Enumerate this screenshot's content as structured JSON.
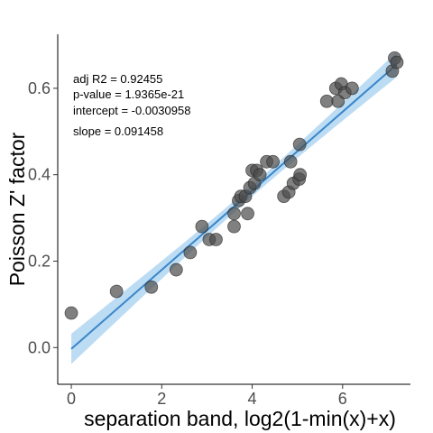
{
  "chart_data": {
    "type": "scatter",
    "title": "",
    "xlabel": "separation band, log2(1-min(x)+x)",
    "ylabel": "Poisson Z' factor",
    "xlim": [
      -0.3,
      7.5
    ],
    "ylim": [
      -0.085,
      0.725
    ],
    "xticks": [
      0,
      2,
      4,
      6
    ],
    "yticks": [
      0.0,
      0.2,
      0.4,
      0.6
    ],
    "ytick_labels": [
      "0.0",
      "0.2",
      "0.4",
      "0.6"
    ],
    "grid": false,
    "annotations": [
      "adj R2 =  0.92455",
      "p-value = 1.9365e-21",
      "intercept = -0.0030958",
      "slope = 0.091458"
    ],
    "fit": {
      "intercept": -0.0030958,
      "slope": 0.091458,
      "x_range": [
        0,
        7.2
      ],
      "ci_halfwidth_at_ends": 0.035,
      "ci_halfwidth_at_center": 0.013,
      "center_x": 4.0
    },
    "colors": {
      "points": "#4a4a4a",
      "fit_line": "#3a86c8",
      "ci_band": "#9fcdf0"
    },
    "points": [
      {
        "x": 0.0,
        "y": 0.08
      },
      {
        "x": 1.0,
        "y": 0.13
      },
      {
        "x": 1.77,
        "y": 0.14
      },
      {
        "x": 2.32,
        "y": 0.18
      },
      {
        "x": 2.63,
        "y": 0.22
      },
      {
        "x": 2.89,
        "y": 0.28
      },
      {
        "x": 3.05,
        "y": 0.25
      },
      {
        "x": 3.2,
        "y": 0.25
      },
      {
        "x": 3.6,
        "y": 0.28
      },
      {
        "x": 3.6,
        "y": 0.31
      },
      {
        "x": 3.7,
        "y": 0.34
      },
      {
        "x": 3.75,
        "y": 0.35
      },
      {
        "x": 3.85,
        "y": 0.35
      },
      {
        "x": 3.9,
        "y": 0.31
      },
      {
        "x": 3.95,
        "y": 0.37
      },
      {
        "x": 4.0,
        "y": 0.41
      },
      {
        "x": 4.05,
        "y": 0.38
      },
      {
        "x": 4.1,
        "y": 0.41
      },
      {
        "x": 4.17,
        "y": 0.4
      },
      {
        "x": 4.32,
        "y": 0.43
      },
      {
        "x": 4.46,
        "y": 0.43
      },
      {
        "x": 4.7,
        "y": 0.35
      },
      {
        "x": 4.81,
        "y": 0.36
      },
      {
        "x": 4.85,
        "y": 0.43
      },
      {
        "x": 4.91,
        "y": 0.38
      },
      {
        "x": 5.04,
        "y": 0.39
      },
      {
        "x": 5.06,
        "y": 0.4
      },
      {
        "x": 5.05,
        "y": 0.47
      },
      {
        "x": 5.65,
        "y": 0.57
      },
      {
        "x": 5.85,
        "y": 0.6
      },
      {
        "x": 5.9,
        "y": 0.57
      },
      {
        "x": 5.97,
        "y": 0.61
      },
      {
        "x": 6.05,
        "y": 0.59
      },
      {
        "x": 6.21,
        "y": 0.6
      },
      {
        "x": 7.1,
        "y": 0.64
      },
      {
        "x": 7.15,
        "y": 0.67
      },
      {
        "x": 7.2,
        "y": 0.66
      }
    ]
  }
}
